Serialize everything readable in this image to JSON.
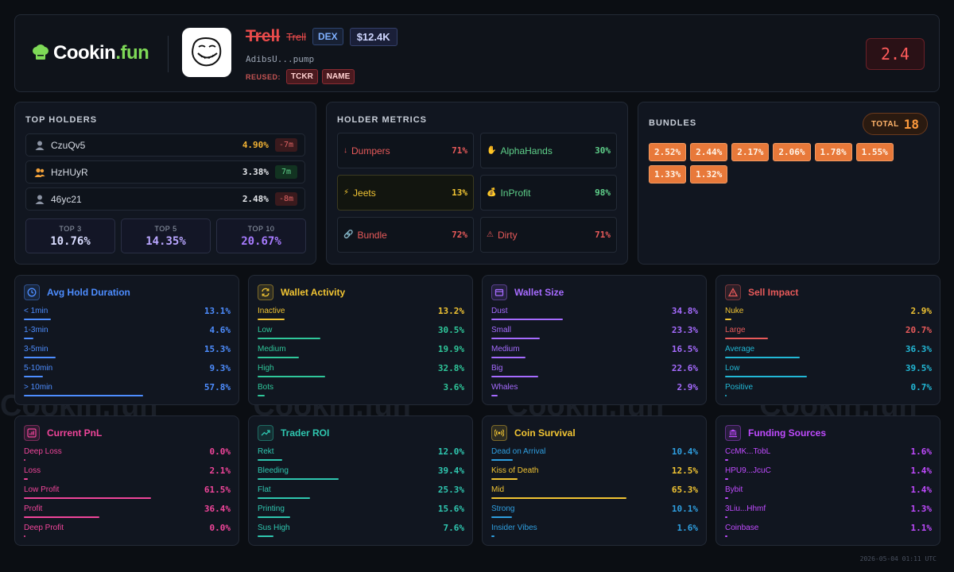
{
  "brand": {
    "name_main": "Cookin",
    "name_dot": ".fun",
    "watermark": "Cookin.fun"
  },
  "token": {
    "name": "Trell",
    "ticker": "Trell",
    "venue": "DEX",
    "market_cap": "$12.4K",
    "address": "AdibsU...pump",
    "reused_label": "REUSED:",
    "reused_tags": [
      "TCKR",
      "NAME"
    ],
    "score": "2.4"
  },
  "holders": {
    "title": "TOP HOLDERS",
    "rows": [
      {
        "name": "CzuQv5",
        "pct": "4.90%",
        "age": "-7m",
        "icon": "user-icon",
        "pct_color": "#f2b233",
        "age_color": "#e06464",
        "age_bg": "#3a1a1d"
      },
      {
        "name": "HzHUyR",
        "pct": "3.38%",
        "age": "7m",
        "icon": "users-icon",
        "pct_color": "#e6e8ec",
        "age_color": "#5fd08a",
        "age_bg": "#123321"
      },
      {
        "name": "46yc21",
        "pct": "2.48%",
        "age": "-8m",
        "icon": "user-icon",
        "pct_color": "#e6e8ec",
        "age_color": "#e06464",
        "age_bg": "#3a1a1d"
      }
    ],
    "summary": [
      {
        "label": "TOP 3",
        "value": "10.76%",
        "color": "#d9dcff"
      },
      {
        "label": "TOP 5",
        "value": "14.35%",
        "color": "#b9a6ff"
      },
      {
        "label": "TOP 10",
        "value": "20.67%",
        "color": "#a77bff"
      }
    ]
  },
  "metrics": {
    "title": "HOLDER METRICS",
    "cells": [
      {
        "icon": "↓",
        "icon_name": "arrow-down-icon",
        "label": "Dumpers",
        "value": "71%",
        "color": "#e85a5a"
      },
      {
        "icon": "✋",
        "icon_name": "hand-icon",
        "label": "AlphaHands",
        "value": "30%",
        "color": "#5fd08a"
      },
      {
        "icon": "⚡",
        "icon_name": "lightning-icon",
        "label": "Jeets",
        "value": "13%",
        "color": "#f2c533"
      },
      {
        "icon": "💰",
        "icon_name": "money-bag-icon",
        "label": "InProfit",
        "value": "98%",
        "color": "#5fd08a"
      },
      {
        "icon": "🔗",
        "icon_name": "link-icon",
        "label": "Bundle",
        "value": "72%",
        "color": "#e85a5a"
      },
      {
        "icon": "⚠",
        "icon_name": "warning-icon",
        "label": "Dirty",
        "value": "71%",
        "color": "#e85a5a"
      }
    ]
  },
  "bundles": {
    "title": "BUNDLES",
    "total_label": "TOTAL",
    "total": "18",
    "values": [
      "2.52%",
      "2.44%",
      "2.17%",
      "2.06%",
      "1.78%",
      "1.55%",
      "1.33%",
      "1.32%"
    ]
  },
  "cards": [
    {
      "title": "Avg Hold Duration",
      "icon_name": "clock-icon",
      "color": "#4d8dff",
      "rows": [
        {
          "label": "< 1min",
          "value": "13.1%",
          "fill": 0.131
        },
        {
          "label": "1-3min",
          "value": "4.6%",
          "fill": 0.046
        },
        {
          "label": "3-5min",
          "value": "15.3%",
          "fill": 0.153
        },
        {
          "label": "5-10min",
          "value": "9.3%",
          "fill": 0.093
        },
        {
          "label": "> 10min",
          "value": "57.8%",
          "fill": 0.578
        }
      ]
    },
    {
      "title": "Wallet Activity",
      "icon_name": "refresh-icon",
      "color": "#f2c533",
      "rows": [
        {
          "label": "Inactive",
          "value": "13.2%",
          "fill": 0.132,
          "color": "#f2c533"
        },
        {
          "label": "Low",
          "value": "30.5%",
          "fill": 0.305,
          "color": "#2fc79a"
        },
        {
          "label": "Medium",
          "value": "19.9%",
          "fill": 0.199,
          "color": "#2fc79a"
        },
        {
          "label": "High",
          "value": "32.8%",
          "fill": 0.328,
          "color": "#2fc79a"
        },
        {
          "label": "Bots",
          "value": "3.6%",
          "fill": 0.036,
          "color": "#2fc79a"
        }
      ]
    },
    {
      "title": "Wallet Size",
      "icon_name": "wallet-icon",
      "color": "#a66bff",
      "rows": [
        {
          "label": "Dust",
          "value": "34.8%",
          "fill": 0.348
        },
        {
          "label": "Small",
          "value": "23.3%",
          "fill": 0.233
        },
        {
          "label": "Medium",
          "value": "16.5%",
          "fill": 0.165
        },
        {
          "label": "Big",
          "value": "22.6%",
          "fill": 0.226
        },
        {
          "label": "Whales",
          "value": "2.9%",
          "fill": 0.029
        }
      ]
    },
    {
      "title": "Sell Impact",
      "icon_name": "alert-triangle-icon",
      "color": "#e85a5a",
      "rows": [
        {
          "label": "Nuke",
          "value": "2.9%",
          "fill": 0.029,
          "color": "#f2c533"
        },
        {
          "label": "Large",
          "value": "20.7%",
          "fill": 0.207,
          "color": "#e85a5a"
        },
        {
          "label": "Average",
          "value": "36.3%",
          "fill": 0.363,
          "color": "#22b8d6"
        },
        {
          "label": "Low",
          "value": "39.5%",
          "fill": 0.395,
          "color": "#22b8d6"
        },
        {
          "label": "Positive",
          "value": "0.7%",
          "fill": 0.007,
          "color": "#22b8d6"
        }
      ]
    },
    {
      "title": "Current PnL",
      "icon_name": "bar-chart-icon",
      "color": "#f0459a",
      "rows": [
        {
          "label": "Deep Loss",
          "value": "0.0%",
          "fill": 0.0
        },
        {
          "label": "Loss",
          "value": "2.1%",
          "fill": 0.021
        },
        {
          "label": "Low Profit",
          "value": "61.5%",
          "fill": 0.615
        },
        {
          "label": "Profit",
          "value": "36.4%",
          "fill": 0.364
        },
        {
          "label": "Deep Profit",
          "value": "0.0%",
          "fill": 0.0
        }
      ]
    },
    {
      "title": "Trader ROI",
      "icon_name": "trending-up-icon",
      "color": "#2fc7b0",
      "rows": [
        {
          "label": "Rekt",
          "value": "12.0%",
          "fill": 0.12
        },
        {
          "label": "Bleeding",
          "value": "39.4%",
          "fill": 0.394
        },
        {
          "label": "Flat",
          "value": "25.3%",
          "fill": 0.253
        },
        {
          "label": "Printing",
          "value": "15.6%",
          "fill": 0.156
        },
        {
          "label": "Sus High",
          "value": "7.6%",
          "fill": 0.076
        }
      ]
    },
    {
      "title": "Coin Survival",
      "icon_name": "broadcast-icon",
      "color": "#f2c533",
      "rows": [
        {
          "label": "Dead on Arrival",
          "value": "10.4%",
          "fill": 0.104,
          "color": "#2f9fe0"
        },
        {
          "label": "Kiss of Death",
          "value": "12.5%",
          "fill": 0.125,
          "color": "#f2c533"
        },
        {
          "label": "Mid",
          "value": "65.3%",
          "fill": 0.653,
          "color": "#f2c533"
        },
        {
          "label": "Strong",
          "value": "10.1%",
          "fill": 0.101,
          "color": "#2f9fe0"
        },
        {
          "label": "Insider Vibes",
          "value": "1.6%",
          "fill": 0.016,
          "color": "#2f9fe0"
        }
      ]
    },
    {
      "title": "Funding Sources",
      "icon_name": "bank-icon",
      "color": "#c04bff",
      "rows": [
        {
          "label": "CcMK...TobL",
          "value": "1.6%",
          "fill": 0.016
        },
        {
          "label": "HPU9...JcuC",
          "value": "1.4%",
          "fill": 0.014
        },
        {
          "label": "Bybit",
          "value": "1.4%",
          "fill": 0.014
        },
        {
          "label": "3Liu...Hhmf",
          "value": "1.3%",
          "fill": 0.013
        },
        {
          "label": "Coinbase",
          "value": "1.1%",
          "fill": 0.011
        }
      ]
    }
  ],
  "footer": {
    "timestamp": "2026-05-04 01:11 UTC"
  }
}
